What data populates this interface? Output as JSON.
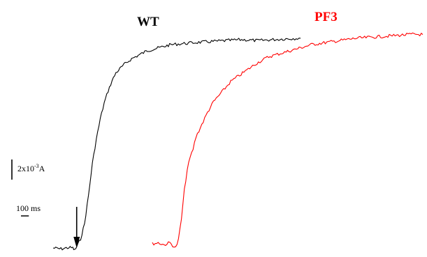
{
  "chart_data": {
    "type": "line",
    "title": "",
    "xlabel": "",
    "ylabel": "",
    "grid": false,
    "legend": "none",
    "series": [
      {
        "name": "WT",
        "color": "#000000",
        "points": [
          [
            0,
            0.0
          ],
          [
            4,
            -0.05
          ],
          [
            8,
            0.02
          ],
          [
            10,
            0.0
          ],
          [
            11,
            -0.12
          ],
          [
            12,
            0.05
          ],
          [
            14,
            0.45
          ],
          [
            16,
            1.2
          ],
          [
            18,
            2.6
          ],
          [
            20,
            4.2
          ],
          [
            22,
            5.4
          ],
          [
            24,
            6.4
          ],
          [
            26,
            7.2
          ],
          [
            28,
            7.8
          ],
          [
            30,
            8.3
          ],
          [
            32,
            8.7
          ],
          [
            34,
            8.9
          ],
          [
            36,
            9.1
          ],
          [
            40,
            9.4
          ],
          [
            44,
            9.6
          ],
          [
            48,
            9.8
          ],
          [
            52,
            9.9
          ],
          [
            56,
            10.0
          ],
          [
            60,
            10.1
          ],
          [
            66,
            10.15
          ],
          [
            72,
            10.2
          ],
          [
            80,
            10.25
          ],
          [
            88,
            10.3
          ],
          [
            96,
            10.35
          ],
          [
            104,
            10.3
          ],
          [
            112,
            10.35
          ],
          [
            120,
            10.4
          ],
          [
            126,
            10.42
          ]
        ]
      },
      {
        "name": "PF3",
        "color": "#ff0000",
        "points": [
          [
            0,
            0.0
          ],
          [
            4,
            0.05
          ],
          [
            8,
            -0.05
          ],
          [
            12,
            0.05
          ],
          [
            16,
            -0.2
          ],
          [
            18,
            0.2
          ],
          [
            20,
            1.2
          ],
          [
            22,
            2.6
          ],
          [
            24,
            3.6
          ],
          [
            26,
            4.2
          ],
          [
            28,
            4.6
          ],
          [
            30,
            5.2
          ],
          [
            34,
            5.8
          ],
          [
            38,
            6.4
          ],
          [
            42,
            6.9
          ],
          [
            48,
            7.4
          ],
          [
            54,
            7.9
          ],
          [
            60,
            8.2
          ],
          [
            66,
            8.5
          ],
          [
            72,
            8.8
          ],
          [
            80,
            9.1
          ],
          [
            90,
            9.3
          ],
          [
            100,
            9.5
          ],
          [
            110,
            9.7
          ],
          [
            120,
            9.8
          ],
          [
            130,
            9.9
          ],
          [
            140,
            10.0
          ],
          [
            150,
            10.05
          ],
          [
            160,
            10.1
          ],
          [
            170,
            10.15
          ],
          [
            180,
            10.2
          ],
          [
            186,
            10.18
          ]
        ]
      }
    ],
    "annotations": {
      "arrow": "stimulus onset",
      "current_scale": {
        "base": "2x10",
        "exponent": "-3",
        "unit": "A",
        "value": 1
      },
      "time_scale": {
        "text": "100 ms",
        "value": 4
      }
    },
    "units_note": "x in 25 ms steps (time scale bar = 4 steps); y in 2x10^-3 A steps (current scale bar = 1 step)"
  }
}
